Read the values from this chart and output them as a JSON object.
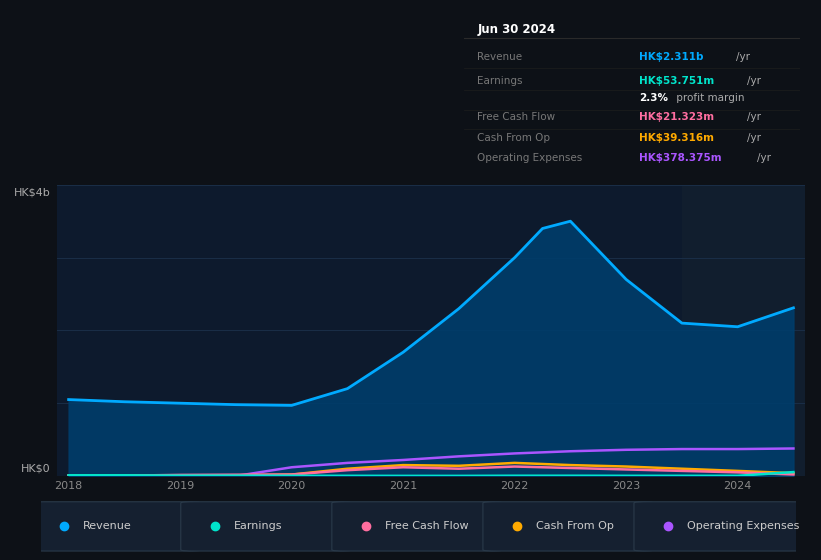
{
  "background_color": "#0d1117",
  "chart_bg": "#0d1a2d",
  "title_box": {
    "date": "Jun 30 2024",
    "rows": [
      {
        "label": "Revenue",
        "value": "HK$2.311b",
        "unit": "/yr",
        "color": "#00aaff"
      },
      {
        "label": "Earnings",
        "value": "HK$53.751m",
        "unit": "/yr",
        "color": "#00e5cc"
      },
      {
        "label": "",
        "value": "2.3%",
        "unit": " profit margin",
        "color": "#ffffff"
      },
      {
        "label": "Free Cash Flow",
        "value": "HK$21.323m",
        "unit": "/yr",
        "color": "#ff6ea0"
      },
      {
        "label": "Cash From Op",
        "value": "HK$39.316m",
        "unit": "/yr",
        "color": "#ffaa00"
      },
      {
        "label": "Operating Expenses",
        "value": "HK$378.375m",
        "unit": "/yr",
        "color": "#aa55ff"
      }
    ]
  },
  "ylabel_top": "HK$4b",
  "ylabel_bottom": "HK$0",
  "x_labels": [
    "2018",
    "2019",
    "2020",
    "2021",
    "2022",
    "2023",
    "2024"
  ],
  "series": {
    "Revenue": {
      "color": "#00aaff",
      "x": [
        2018,
        2018.5,
        2019,
        2019.5,
        2020,
        2020.5,
        2021,
        2021.5,
        2022,
        2022.25,
        2022.5,
        2023,
        2023.5,
        2024,
        2024.5
      ],
      "y": [
        1.05,
        1.02,
        1.0,
        0.98,
        0.97,
        1.2,
        1.7,
        2.3,
        3.0,
        3.4,
        3.5,
        2.7,
        2.1,
        2.05,
        2.31
      ]
    },
    "Earnings": {
      "color": "#00e5cc",
      "x": [
        2018,
        2018.5,
        2019,
        2019.5,
        2020,
        2020.5,
        2021,
        2021.5,
        2022,
        2022.5,
        2023,
        2023.5,
        2024,
        2024.5
      ],
      "y": [
        0.01,
        0.01,
        0.005,
        0.005,
        0.003,
        0.003,
        0.002,
        0.002,
        0.004,
        0.004,
        0.003,
        0.003,
        0.003,
        0.054
      ]
    },
    "Free Cash Flow": {
      "color": "#ff6ea0",
      "x": [
        2018,
        2018.5,
        2019,
        2019.5,
        2020,
        2020.5,
        2021,
        2021.5,
        2022,
        2022.5,
        2023,
        2023.5,
        2024,
        2024.5
      ],
      "y": [
        0.005,
        0.005,
        0.015,
        0.018,
        0.02,
        0.08,
        0.12,
        0.1,
        0.13,
        0.11,
        0.09,
        0.07,
        0.05,
        0.021
      ]
    },
    "Cash From Op": {
      "color": "#ffaa00",
      "x": [
        2018,
        2018.5,
        2019,
        2019.5,
        2020,
        2020.5,
        2021,
        2021.5,
        2022,
        2022.5,
        2023,
        2023.5,
        2024,
        2024.5
      ],
      "y": [
        0.01,
        0.01,
        0.01,
        0.01,
        0.02,
        0.1,
        0.15,
        0.14,
        0.18,
        0.15,
        0.13,
        0.1,
        0.07,
        0.039
      ]
    },
    "Operating Expenses": {
      "color": "#aa55ff",
      "x": [
        2018,
        2018.5,
        2019,
        2019.5,
        2020,
        2020.5,
        2021,
        2021.5,
        2022,
        2022.5,
        2023,
        2023.5,
        2024,
        2024.5
      ],
      "y": [
        0.0,
        0.0,
        0.0,
        0.0,
        0.12,
        0.18,
        0.22,
        0.27,
        0.31,
        0.34,
        0.36,
        0.37,
        0.37,
        0.378
      ]
    }
  },
  "shaded_region_start": 2023.5,
  "ylim": [
    0,
    4.0
  ],
  "xlim": [
    2017.9,
    2024.6
  ],
  "legend_items": [
    {
      "label": "Revenue",
      "color": "#00aaff"
    },
    {
      "label": "Earnings",
      "color": "#00e5cc"
    },
    {
      "label": "Free Cash Flow",
      "color": "#ff6ea0"
    },
    {
      "label": "Cash From Op",
      "color": "#ffaa00"
    },
    {
      "label": "Operating Expenses",
      "color": "#aa55ff"
    }
  ]
}
